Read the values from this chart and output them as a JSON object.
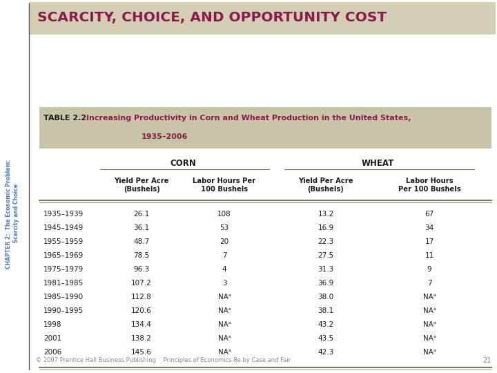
{
  "title": "SCARCITY, CHOICE, AND OPPORTUNITY COST",
  "title_color": "#8B1A4A",
  "title_bg_color": "#D4CFB4",
  "sidebar_text": "CHAPTER 2:  The Economic Problem:\n Scarcity and Choice",
  "sidebar_color": "#4A7AB5",
  "table_header_bg": "#C8C4A8",
  "table_label": "TABLE 2.2",
  "table_caption_line1": "Increasing Productivity in Corn and Wheat Production in the United States,",
  "table_caption_line2": "1935–2006",
  "table_caption_color": "#8B1A4A",
  "sub_headers": [
    "Yield Per Acre\n(Bushels)",
    "Labor Hours Per\n100 Bushels",
    "Yield Per Acre\n(Bushels)",
    "Labor Hours\nPer 100 Bushels"
  ],
  "rows": [
    [
      "1935–1939",
      "26.1",
      "108",
      "13.2",
      "67"
    ],
    [
      "1945–1949",
      "36.1",
      "53",
      "16.9",
      "34"
    ],
    [
      "1955–1959",
      "48.7",
      "20",
      "22.3",
      "17"
    ],
    [
      "1965–1969",
      "78.5",
      "7",
      "27.5",
      "11"
    ],
    [
      "1975–1979",
      "96.3",
      "4",
      "31.3",
      "9"
    ],
    [
      "1981–1985",
      "107.2",
      "3",
      "36.9",
      "7"
    ],
    [
      "1985–1990",
      "112.8",
      "NAᵃ",
      "38.0",
      "NAᵃ"
    ],
    [
      "1990–1995",
      "120.6",
      "NAᵃ",
      "38.1",
      "NAᵃ"
    ],
    [
      "1998",
      "134.4",
      "NAᵃ",
      "43.2",
      "NAᵃ"
    ],
    [
      "2001",
      "138.2",
      "NAᵃ",
      "43.5",
      "NAᵃ"
    ],
    [
      "2006",
      "145.6",
      "NAᵃ",
      "42.3",
      "NAᵃ"
    ]
  ],
  "footer": "© 2007 Prentice Hall Business Publishing    Principles of Economics 8e by Case and Fair",
  "page_number": "21",
  "bg_color": "#FFFFFF",
  "line_color": "#7A7A5A",
  "text_color": "#1A1A1A"
}
